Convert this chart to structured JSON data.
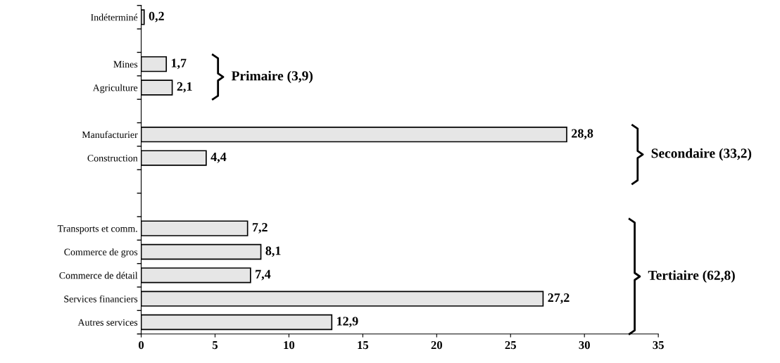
{
  "chart_data": {
    "type": "bar",
    "orientation": "horizontal",
    "categories": [
      "Indéterminé",
      null,
      "Mines",
      "Agriculture",
      null,
      "Manufacturier",
      "Construction",
      null,
      null,
      "Transports et comm.",
      "Commerce de gros",
      "Commerce de détail",
      "Services financiers",
      "Autres services"
    ],
    "values": [
      0.2,
      null,
      1.7,
      2.1,
      null,
      28.8,
      4.4,
      null,
      null,
      7.2,
      8.1,
      7.4,
      27.2,
      12.9
    ],
    "value_labels": [
      "0,2",
      null,
      "1,7",
      "2,1",
      null,
      "28,8",
      "4,4",
      null,
      null,
      "7,2",
      "8,1",
      "7,4",
      "27,2",
      "12,9"
    ],
    "color": "#e6e6e6",
    "xlim": [
      0,
      35
    ],
    "xticks": [
      0,
      5,
      10,
      15,
      20,
      25,
      30,
      35
    ],
    "annotations": [
      "Primaire (3,9)",
      "Secondaire (33,2)",
      "Tertiaire (62,8)"
    ],
    "grid": false,
    "legend": false
  }
}
